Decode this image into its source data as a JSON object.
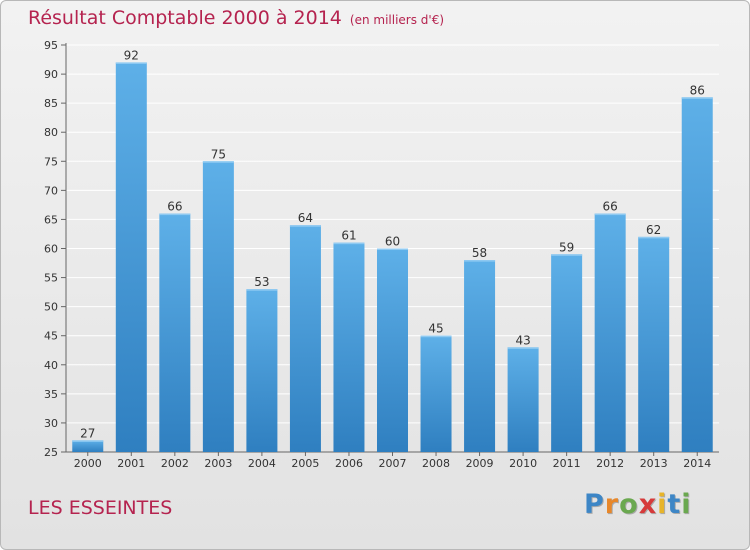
{
  "header": {
    "title": "Résultat Comptable 2000 à 2014",
    "unit": "(en milliers d'€)"
  },
  "footer": {
    "commune": "LES ESSEINTES",
    "brand": [
      "P",
      "r",
      "o",
      "x",
      "i",
      "t",
      "i"
    ],
    "brand_colors": [
      "#3d86c6",
      "#e7872a",
      "#6aa84f",
      "#d63a3a",
      "#e7b42a",
      "#3d86c6",
      "#6aa84f"
    ]
  },
  "colors": {
    "title": "#b5234f",
    "bar_light": "#5eb0e8",
    "bar_dark": "#2f7fc0",
    "grid": "#ffffff"
  },
  "chart_data": {
    "type": "bar",
    "title": "Résultat Comptable 2000 à 2014",
    "ylabel": "en milliers d'€",
    "xlabel": "",
    "categories": [
      "2000",
      "2001",
      "2002",
      "2003",
      "2004",
      "2005",
      "2006",
      "2007",
      "2008",
      "2009",
      "2010",
      "2011",
      "2012",
      "2013",
      "2014"
    ],
    "values": [
      27,
      92,
      66,
      75,
      53,
      64,
      61,
      60,
      45,
      58,
      43,
      59,
      66,
      62,
      86
    ],
    "ylim": [
      25,
      95
    ],
    "yticks": [
      25,
      30,
      35,
      40,
      45,
      50,
      55,
      60,
      65,
      70,
      75,
      80,
      85,
      90,
      95
    ],
    "grid": true
  }
}
